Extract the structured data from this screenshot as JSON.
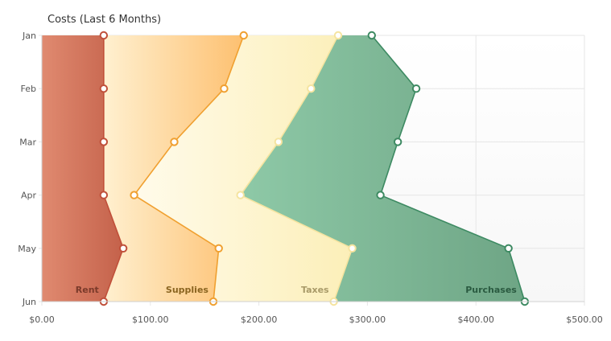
{
  "chart_data": {
    "type": "area",
    "orientation": "horizontal",
    "stacked": true,
    "title": "Costs (Last 6 Months)",
    "categories": [
      "Jan",
      "Feb",
      "Mar",
      "Apr",
      "May",
      "Jun"
    ],
    "xlim": [
      0,
      500
    ],
    "x_ticks": [
      "$0.00",
      "$100.00",
      "$200.00",
      "$300.00",
      "$400.00",
      "$500.00"
    ],
    "grid": true,
    "series": [
      {
        "name": "Rent",
        "color": "#c0503a",
        "values": [
          57,
          57,
          57,
          57,
          75,
          57
        ]
      },
      {
        "name": "Supplies",
        "color": "#f0a030",
        "values": [
          186,
          168,
          122,
          85,
          163,
          158
        ]
      },
      {
        "name": "Taxes",
        "color": "#f5e4a0",
        "values": [
          273,
          248,
          218,
          183,
          286,
          269
        ]
      },
      {
        "name": "Purchases",
        "color": "#3d8a62",
        "values": [
          304,
          345,
          328,
          312,
          430,
          445
        ]
      }
    ]
  }
}
